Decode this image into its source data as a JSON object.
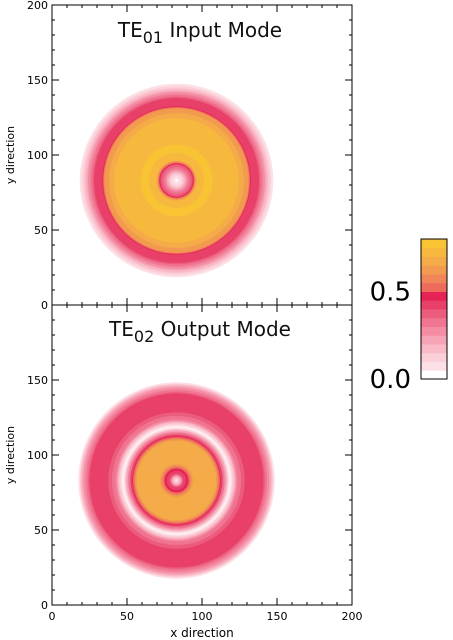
{
  "chart_data": [
    {
      "type": "heatmap",
      "title_main": "TE",
      "title_sub": "01",
      "title_rest": " Input Mode",
      "xlabel": "",
      "ylabel": "y direction",
      "xlim": [
        0,
        200
      ],
      "ylim": [
        0,
        200
      ],
      "center": [
        83,
        83
      ],
      "x_ticks": [
        0,
        50,
        100,
        150,
        200
      ],
      "y_ticks": [
        "0",
        "50",
        "100",
        "150",
        "200"
      ],
      "radial_profile": [
        {
          "r": 0,
          "value": 0.0
        },
        {
          "r": 4,
          "value": 0.1
        },
        {
          "r": 8,
          "value": 0.3
        },
        {
          "r": 11,
          "value": 0.4
        },
        {
          "r": 14,
          "value": 0.75
        },
        {
          "r": 20,
          "value": 0.78
        },
        {
          "r": 40,
          "value": 0.75
        },
        {
          "r": 48,
          "value": 0.62
        },
        {
          "r": 50,
          "value": 0.4
        },
        {
          "r": 55,
          "value": 0.4
        },
        {
          "r": 60,
          "value": 0.2
        },
        {
          "r": 64,
          "value": 0.05
        },
        {
          "r": 66,
          "value": 0.0
        }
      ]
    },
    {
      "type": "heatmap",
      "title_main": "TE",
      "title_sub": "02",
      "title_rest": " Output Mode",
      "xlabel": "x direction",
      "ylabel": "y direction",
      "xlim": [
        0,
        200
      ],
      "ylim": [
        0,
        200
      ],
      "center": [
        83,
        83
      ],
      "x_ticks": [
        "0",
        "50",
        "100",
        "150",
        "200"
      ],
      "y_ticks": [
        "0",
        "50",
        "100",
        "150",
        ""
      ],
      "radial_profile": [
        {
          "r": 0,
          "value": 0.05
        },
        {
          "r": 3,
          "value": 0.2
        },
        {
          "r": 5,
          "value": 0.4
        },
        {
          "r": 8,
          "value": 0.5
        },
        {
          "r": 12,
          "value": 0.72
        },
        {
          "r": 26,
          "value": 0.72
        },
        {
          "r": 32,
          "value": 0.3
        },
        {
          "r": 36,
          "value": 0.0
        },
        {
          "r": 41,
          "value": 0.3
        },
        {
          "r": 46,
          "value": 0.4
        },
        {
          "r": 58,
          "value": 0.4
        },
        {
          "r": 63,
          "value": 0.2
        },
        {
          "r": 66,
          "value": 0.0
        }
      ]
    }
  ],
  "colorbar": {
    "tick_labels": [
      "0.5",
      "0.0"
    ],
    "tick_values": [
      0.5,
      0.0
    ],
    "range": [
      0,
      0.8
    ],
    "colors": [
      "#ffffff",
      "#fde0e6",
      "#fbcfd8",
      "#f9b9c7",
      "#f7a3b6",
      "#f48ca4",
      "#f07591",
      "#ec5d7d",
      "#e84068",
      "#e62257",
      "#ee6a5d",
      "#f08557",
      "#f29a4f",
      "#f5ab49",
      "#f7b83f",
      "#f9c434"
    ]
  }
}
